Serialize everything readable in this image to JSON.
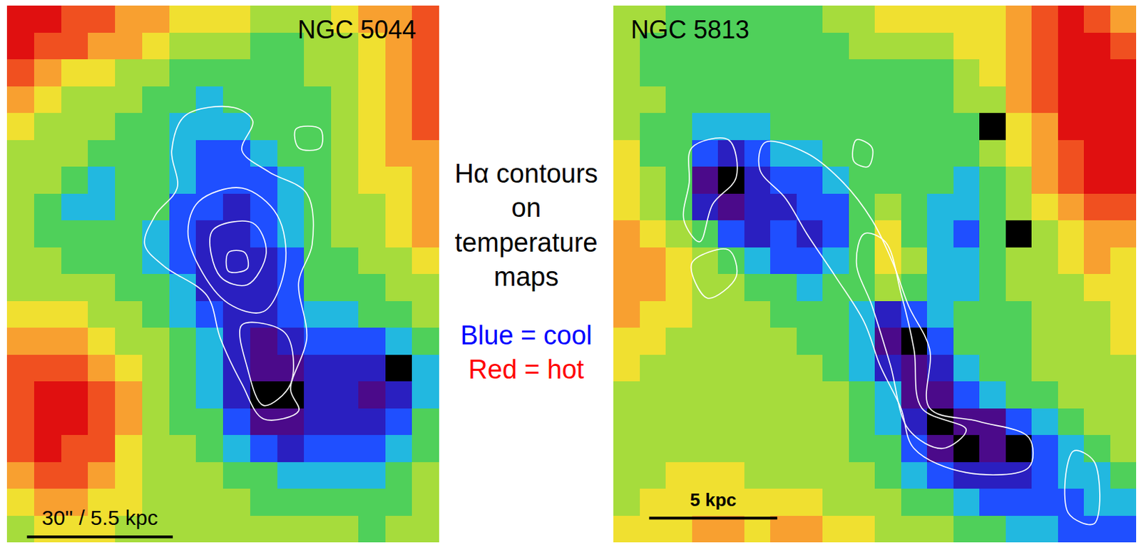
{
  "chart_data": [
    {
      "type": "heatmap",
      "title": "NGC 5044",
      "tick_labels": false,
      "scale_bar": {
        "label": "30'' / 5.5 kpc",
        "length": 5.4
      },
      "cells": [
        [
          10,
          10,
          9,
          9,
          8,
          8,
          7,
          7,
          7,
          6,
          6,
          6,
          7,
          8,
          8,
          9
        ],
        [
          10,
          9,
          9,
          8,
          8,
          7,
          6,
          6,
          6,
          5,
          5,
          6,
          6,
          7,
          8,
          9
        ],
        [
          9,
          8,
          7,
          7,
          6,
          6,
          5,
          5,
          5,
          5,
          5,
          6,
          6,
          7,
          8,
          9
        ],
        [
          8,
          7,
          6,
          6,
          6,
          5,
          5,
          4,
          5,
          5,
          5,
          5,
          6,
          7,
          8,
          9
        ],
        [
          7,
          6,
          6,
          6,
          5,
          5,
          4,
          4,
          4,
          5,
          5,
          5,
          6,
          7,
          8,
          9
        ],
        [
          6,
          6,
          6,
          5,
          5,
          5,
          4,
          3,
          3,
          4,
          5,
          5,
          6,
          7,
          8,
          8
        ],
        [
          6,
          6,
          5,
          4,
          5,
          5,
          4,
          3,
          3,
          3,
          4,
          5,
          6,
          7,
          7,
          8
        ],
        [
          6,
          5,
          4,
          4,
          5,
          5,
          3,
          3,
          2,
          3,
          4,
          5,
          6,
          6,
          7,
          8
        ],
        [
          6,
          5,
          5,
          5,
          5,
          4,
          3,
          2,
          2,
          3,
          4,
          5,
          6,
          6,
          7,
          8
        ],
        [
          6,
          6,
          5,
          5,
          5,
          4,
          3,
          2,
          2,
          2,
          3,
          5,
          5,
          6,
          6,
          7
        ],
        [
          6,
          6,
          6,
          6,
          5,
          5,
          4,
          2,
          2,
          2,
          3,
          5,
          5,
          5,
          6,
          6
        ],
        [
          7,
          7,
          7,
          6,
          6,
          5,
          4,
          3,
          2,
          2,
          3,
          4,
          4,
          5,
          5,
          6
        ],
        [
          8,
          8,
          8,
          7,
          6,
          6,
          5,
          4,
          2,
          1,
          2,
          3,
          3,
          3,
          4,
          5
        ],
        [
          9,
          9,
          9,
          8,
          7,
          6,
          5,
          4,
          2,
          1,
          1,
          2,
          2,
          2,
          0,
          4
        ],
        [
          9,
          10,
          10,
          9,
          8,
          6,
          5,
          4,
          2,
          0,
          0,
          2,
          2,
          1,
          2,
          4
        ],
        [
          9,
          10,
          10,
          9,
          8,
          6,
          5,
          5,
          3,
          1,
          1,
          2,
          2,
          2,
          3,
          5
        ],
        [
          9,
          10,
          9,
          9,
          7,
          6,
          6,
          5,
          4,
          3,
          2,
          3,
          3,
          3,
          4,
          5
        ],
        [
          8,
          9,
          9,
          8,
          7,
          6,
          6,
          6,
          5,
          5,
          4,
          4,
          4,
          4,
          5,
          6
        ],
        [
          7,
          8,
          8,
          7,
          7,
          6,
          6,
          6,
          6,
          5,
          5,
          5,
          5,
          5,
          5,
          6
        ],
        [
          6,
          7,
          7,
          7,
          6,
          6,
          6,
          6,
          6,
          6,
          6,
          6,
          6,
          5,
          6,
          6
        ]
      ],
      "contours": [
        [
          [
            6.1,
            3.6
          ],
          [
            7.9,
            3.3
          ],
          [
            8.6,
            3.8
          ],
          [
            8.2,
            4.9
          ],
          [
            9.2,
            5.7
          ],
          [
            10.6,
            6.5
          ],
          [
            10.8,
            8.4
          ],
          [
            10.3,
            9.8
          ],
          [
            10.6,
            11.9
          ],
          [
            10.0,
            13.8
          ],
          [
            10.3,
            14.6
          ],
          [
            9.0,
            14.9
          ],
          [
            8.2,
            13.6
          ],
          [
            7.4,
            11.9
          ],
          [
            6.9,
            10.3
          ],
          [
            5.3,
            9.2
          ],
          [
            4.6,
            8.4
          ],
          [
            5.0,
            7.3
          ],
          [
            5.8,
            6.3
          ],
          [
            5.6,
            4.9
          ]
        ],
        [
          [
            6.6,
            6.8
          ],
          [
            8.2,
            6.3
          ],
          [
            9.5,
            7.3
          ],
          [
            9.8,
            9.2
          ],
          [
            9.0,
            10.9
          ],
          [
            7.7,
            10.6
          ],
          [
            6.6,
            9.2
          ],
          [
            6.2,
            7.9
          ]
        ],
        [
          [
            7.1,
            7.9
          ],
          [
            8.6,
            7.6
          ],
          [
            9.1,
            8.7
          ],
          [
            8.4,
            9.9
          ],
          [
            7.4,
            9.6
          ]
        ],
        [
          [
            7.7,
            8.7
          ],
          [
            8.3,
            8.7
          ],
          [
            8.4,
            9.3
          ],
          [
            7.7,
            9.4
          ]
        ],
        [
          [
            10.2,
            4.1
          ],
          [
            11.1,
            4.1
          ],
          [
            11.1,
            4.8
          ],
          [
            10.3,
            4.8
          ]
        ],
        [
          [
            8.2,
            11.4
          ],
          [
            9.8,
            11.7
          ],
          [
            10.0,
            13.6
          ],
          [
            9.0,
            14.4
          ],
          [
            8.4,
            13.0
          ]
        ]
      ]
    },
    {
      "type": "heatmap",
      "title": "NGC 5813",
      "tick_labels": false,
      "scale_bar": {
        "label": "5 kpc",
        "length": 4.9
      },
      "cells": [
        [
          6,
          6,
          5,
          5,
          5,
          5,
          5,
          5,
          6,
          6,
          7,
          7,
          7,
          7,
          7,
          8,
          9,
          10,
          9,
          8
        ],
        [
          6,
          5,
          5,
          5,
          5,
          5,
          5,
          5,
          5,
          6,
          6,
          6,
          6,
          7,
          7,
          8,
          9,
          10,
          10,
          9
        ],
        [
          6,
          5,
          5,
          5,
          5,
          5,
          5,
          5,
          5,
          5,
          5,
          5,
          5,
          6,
          7,
          8,
          9,
          10,
          10,
          10
        ],
        [
          6,
          6,
          5,
          5,
          5,
          5,
          5,
          5,
          5,
          5,
          5,
          5,
          5,
          6,
          6,
          8,
          9,
          10,
          10,
          10
        ],
        [
          6,
          5,
          5,
          4,
          4,
          4,
          5,
          5,
          5,
          5,
          5,
          5,
          5,
          5,
          0,
          7,
          8,
          10,
          10,
          10
        ],
        [
          7,
          5,
          5,
          3,
          2,
          3,
          4,
          4,
          5,
          5,
          5,
          5,
          5,
          5,
          6,
          7,
          8,
          9,
          10,
          10
        ],
        [
          7,
          6,
          5,
          1,
          0,
          2,
          3,
          3,
          4,
          5,
          5,
          5,
          5,
          4,
          5,
          6,
          8,
          9,
          10,
          10
        ],
        [
          7,
          6,
          5,
          2,
          1,
          2,
          2,
          3,
          3,
          5,
          6,
          5,
          4,
          4,
          5,
          6,
          7,
          8,
          9,
          9
        ],
        [
          8,
          7,
          6,
          5,
          3,
          2,
          3,
          2,
          3,
          5,
          7,
          5,
          4,
          3,
          5,
          0,
          6,
          7,
          8,
          8
        ],
        [
          8,
          8,
          7,
          6,
          5,
          4,
          3,
          3,
          4,
          5,
          7,
          6,
          4,
          4,
          5,
          6,
          6,
          7,
          8,
          7
        ],
        [
          8,
          8,
          7,
          6,
          6,
          5,
          5,
          4,
          5,
          5,
          6,
          5,
          4,
          4,
          5,
          6,
          6,
          6,
          7,
          7
        ],
        [
          8,
          7,
          7,
          6,
          6,
          6,
          5,
          5,
          5,
          4,
          2,
          3,
          4,
          5,
          5,
          5,
          6,
          6,
          6,
          7
        ],
        [
          7,
          7,
          6,
          6,
          6,
          6,
          6,
          5,
          5,
          4,
          1,
          0,
          3,
          5,
          5,
          5,
          6,
          6,
          6,
          7
        ],
        [
          7,
          6,
          6,
          6,
          6,
          6,
          6,
          6,
          5,
          4,
          2,
          1,
          2,
          4,
          5,
          5,
          6,
          6,
          6,
          6
        ],
        [
          6,
          6,
          6,
          6,
          6,
          6,
          6,
          6,
          6,
          5,
          4,
          1,
          1,
          3,
          4,
          5,
          5,
          6,
          6,
          6
        ],
        [
          6,
          6,
          6,
          6,
          6,
          6,
          6,
          6,
          6,
          5,
          4,
          2,
          0,
          1,
          1,
          3,
          4,
          5,
          6,
          6
        ],
        [
          6,
          6,
          6,
          6,
          6,
          6,
          6,
          6,
          6,
          5,
          5,
          3,
          1,
          0,
          1,
          0,
          3,
          4,
          5,
          6
        ],
        [
          6,
          6,
          7,
          7,
          7,
          6,
          6,
          6,
          6,
          6,
          5,
          4,
          3,
          2,
          2,
          2,
          3,
          4,
          4,
          5
        ],
        [
          6,
          7,
          7,
          7,
          7,
          7,
          7,
          7,
          6,
          6,
          6,
          5,
          5,
          4,
          3,
          3,
          3,
          3,
          4,
          4
        ],
        [
          7,
          7,
          7,
          8,
          8,
          7,
          8,
          8,
          7,
          7,
          6,
          6,
          6,
          5,
          5,
          4,
          4,
          3,
          3,
          3
        ]
      ],
      "contours": [
        [
          [
            5.3,
            4.6
          ],
          [
            6.9,
            5.0
          ],
          [
            8.3,
            6.1
          ],
          [
            9.4,
            7.5
          ],
          [
            10.2,
            9.1
          ],
          [
            10.8,
            10.7
          ],
          [
            11.6,
            12.3
          ],
          [
            11.6,
            14.5
          ],
          [
            13.5,
            15.0
          ],
          [
            15.4,
            15.6
          ],
          [
            15.4,
            16.7
          ],
          [
            13.0,
            16.9
          ],
          [
            11.0,
            16.0
          ],
          [
            10.5,
            14.5
          ],
          [
            9.7,
            12.9
          ],
          [
            9.1,
            11.3
          ],
          [
            8.0,
            9.6
          ],
          [
            6.9,
            8.0
          ],
          [
            6.1,
            6.7
          ],
          [
            5.1,
            5.6
          ]
        ],
        [
          [
            9.1,
            8.0
          ],
          [
            9.9,
            8.3
          ],
          [
            10.5,
            10.2
          ],
          [
            11.0,
            12.3
          ],
          [
            11.3,
            14.5
          ],
          [
            13.0,
            15.3
          ],
          [
            12.1,
            16.0
          ],
          [
            10.8,
            15.3
          ],
          [
            10.1,
            12.9
          ],
          [
            9.4,
            10.7
          ],
          [
            8.8,
            9.1
          ]
        ],
        [
          [
            2.5,
            4.8
          ],
          [
            3.9,
            4.5
          ],
          [
            4.2,
            5.9
          ],
          [
            3.3,
            6.9
          ],
          [
            2.8,
            8.3
          ],
          [
            2.2,
            7.5
          ],
          [
            2.4,
            6.1
          ]
        ],
        [
          [
            2.5,
            9.1
          ],
          [
            3.9,
            8.6
          ],
          [
            4.2,
            9.6
          ],
          [
            3.1,
            10.4
          ]
        ],
        [
          [
            17.1,
            16.1
          ],
          [
            17.9,
            16.5
          ],
          [
            17.9,
            18.8
          ],
          [
            16.9,
            18.4
          ]
        ],
        [
          [
            8.8,
            4.5
          ],
          [
            9.4,
            4.8
          ],
          [
            9.25,
            5.5
          ],
          [
            8.7,
            5.3
          ]
        ]
      ]
    }
  ],
  "annotations": [
    {
      "text": "Hα contours on temperature maps",
      "color": "black"
    },
    {
      "text": "Blue = cool",
      "color": "blue"
    },
    {
      "text": "Red = hot",
      "color": "red"
    }
  ]
}
